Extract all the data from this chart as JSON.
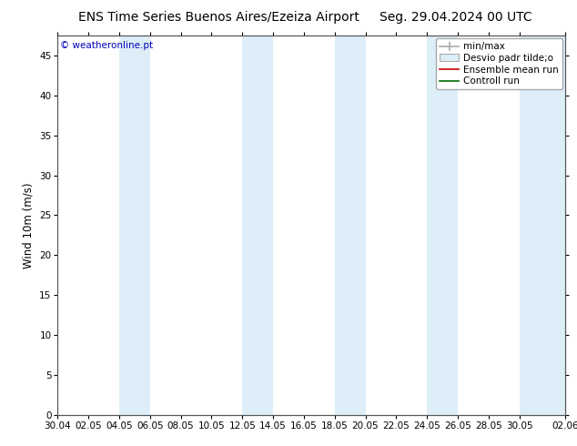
{
  "title_left": "ENS Time Series Buenos Aires/Ezeiza Airport",
  "title_right": "Seg. 29.04.2024 00 UTC",
  "ylabel": "Wind 10m (m/s)",
  "watermark": "© weatheronline.pt",
  "watermark_color": "#0000bb",
  "ylim": [
    0,
    47.5
  ],
  "yticks": [
    0,
    5,
    10,
    15,
    20,
    25,
    30,
    35,
    40,
    45
  ],
  "background_color": "#ffffff",
  "plot_bg_color": "#ffffff",
  "grid_color": "#dddddd",
  "band_color": "#ddeef8",
  "legend_entries": [
    "min/max",
    "Desvio padr tilde;o",
    "Ensemble mean run",
    "Controll run"
  ],
  "x_labels": [
    "30.04",
    "02.05",
    "04.05",
    "06.05",
    "08.05",
    "10.05",
    "12.05",
    "14.05",
    "16.05",
    "18.05",
    "20.05",
    "22.05",
    "24.05",
    "26.05",
    "28.05",
    "30.05",
    "02.06"
  ],
  "x_positions": [
    0,
    2,
    4,
    6,
    8,
    10,
    12,
    14,
    16,
    18,
    20,
    22,
    24,
    26,
    28,
    30,
    33
  ],
  "xlim": [
    0,
    33
  ],
  "band_positions": [
    [
      4,
      6
    ],
    [
      12,
      14
    ],
    [
      18,
      20
    ],
    [
      24,
      26
    ],
    [
      30,
      33
    ]
  ],
  "title_fontsize": 10,
  "tick_fontsize": 7.5,
  "ylabel_fontsize": 8.5,
  "legend_fontsize": 7.5
}
